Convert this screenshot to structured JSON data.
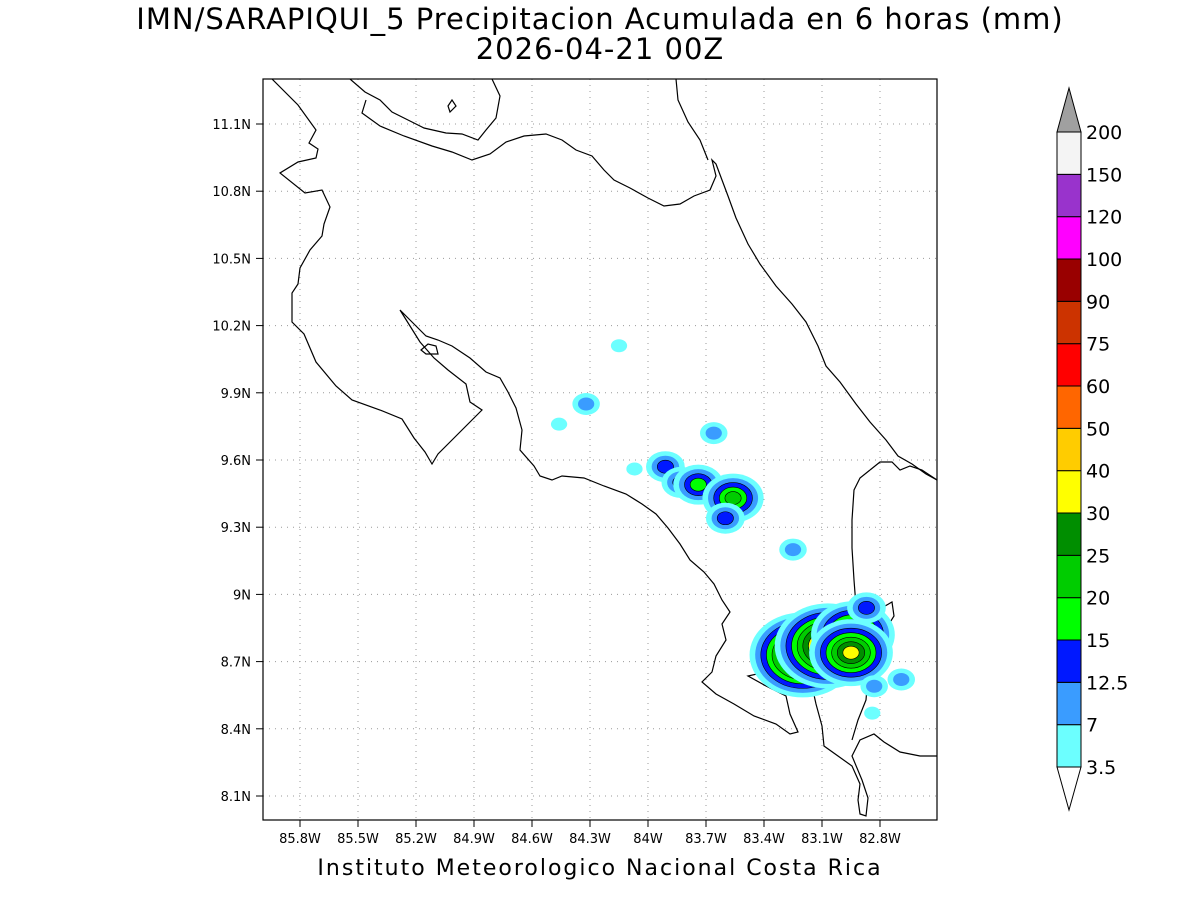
{
  "title_line1": "IMN/SARAPIQUI_5 Precipitacion Acumulada en 6 horas (mm)",
  "title_line2": "2026-04-21 00Z",
  "footer": "Instituto Meteorologico Nacional Costa Rica",
  "map": {
    "lat_ticks": [
      {
        "value": 11.1,
        "label": "11.1N"
      },
      {
        "value": 10.8,
        "label": "10.8N"
      },
      {
        "value": 10.5,
        "label": "10.5N"
      },
      {
        "value": 10.2,
        "label": "10.2N"
      },
      {
        "value": 9.9,
        "label": "9.9N"
      },
      {
        "value": 9.6,
        "label": "9.6N"
      },
      {
        "value": 9.3,
        "label": "9.3N"
      },
      {
        "value": 9.0,
        "label": "9N"
      },
      {
        "value": 8.7,
        "label": "8.7N"
      },
      {
        "value": 8.4,
        "label": "8.4N"
      },
      {
        "value": 8.1,
        "label": "8.1N"
      }
    ],
    "lon_ticks": [
      {
        "value": -85.8,
        "label": "85.8W"
      },
      {
        "value": -85.5,
        "label": "85.5W"
      },
      {
        "value": -85.2,
        "label": "85.2W"
      },
      {
        "value": -84.9,
        "label": "84.9W"
      },
      {
        "value": -84.6,
        "label": "84.6W"
      },
      {
        "value": -84.3,
        "label": "84.3W"
      },
      {
        "value": -84.0,
        "label": "84W"
      },
      {
        "value": -83.7,
        "label": "83.7W"
      },
      {
        "value": -83.4,
        "label": "83.4W"
      },
      {
        "value": -83.1,
        "label": "83.1W"
      },
      {
        "value": -82.8,
        "label": "82.8W"
      }
    ],
    "grid": true
  },
  "colorbar": {
    "colors": [
      "#6cffff",
      "#3a9cff",
      "#0018ff",
      "#00ff00",
      "#00cc00",
      "#008e00",
      "#ffff00",
      "#ffcc00",
      "#ff6600",
      "#ff0000",
      "#cc3300",
      "#990000",
      "#ff00ff",
      "#9933cc",
      "#f4f4f4",
      "#a0a0a0"
    ],
    "labels": [
      "3.5",
      "7",
      "12.5",
      "15",
      "20",
      "25",
      "30",
      "40",
      "50",
      "60",
      "75",
      "90",
      "100",
      "120",
      "150",
      "200"
    ]
  },
  "precip_cells": [
    {
      "lon": -84.15,
      "lat": 10.11,
      "level": 1
    },
    {
      "lon": -84.32,
      "lat": 9.85,
      "level": 2
    },
    {
      "lon": -84.46,
      "lat": 9.76,
      "level": 1
    },
    {
      "lon": -83.66,
      "lat": 9.72,
      "level": 2
    },
    {
      "lon": -84.07,
      "lat": 9.56,
      "level": 1
    },
    {
      "lon": -83.91,
      "lat": 9.57,
      "level": 3
    },
    {
      "lon": -83.83,
      "lat": 9.5,
      "level": 3
    },
    {
      "lon": -83.74,
      "lat": 9.49,
      "level": 4
    },
    {
      "lon": -83.56,
      "lat": 9.43,
      "level": 5
    },
    {
      "lon": -83.6,
      "lat": 9.34,
      "level": 3
    },
    {
      "lon": -83.25,
      "lat": 9.2,
      "level": 2
    },
    {
      "lon": -83.2,
      "lat": 8.73,
      "level": 9
    },
    {
      "lon": -83.07,
      "lat": 8.77,
      "level": 9
    },
    {
      "lon": -82.94,
      "lat": 8.82,
      "level": 7
    },
    {
      "lon": -82.95,
      "lat": 8.74,
      "level": 7
    },
    {
      "lon": -82.87,
      "lat": 8.94,
      "level": 3
    },
    {
      "lon": -82.83,
      "lat": 8.59,
      "level": 2
    },
    {
      "lon": -82.69,
      "lat": 8.62,
      "level": 2
    },
    {
      "lon": -82.84,
      "lat": 8.47,
      "level": 1
    }
  ]
}
